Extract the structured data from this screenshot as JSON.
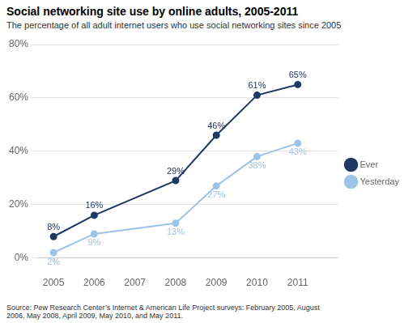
{
  "chart_data": {
    "type": "line",
    "title": "Social networking site use by online adults, 2005-2011",
    "subtitle": "The percentage of all adult internet users who use social networking sites since 2005",
    "source": "Source: Pew Research Center’s Internet & American Life Project surveys: February 2005, August\n2006, May 2008, April 2009, May 2010, and May 2011.",
    "x": [
      2005,
      2006,
      2008,
      2009,
      2010,
      2011
    ],
    "series": [
      {
        "name": "Ever",
        "color": "#1f3864",
        "values": [
          8,
          16,
          29,
          46,
          61,
          65
        ],
        "value_labels": [
          "8%",
          "16%",
          "29%",
          "46%",
          "61%",
          "65%"
        ]
      },
      {
        "name": "Yesterday",
        "color": "#9dc3e6",
        "values": [
          2,
          9,
          13,
          27,
          38,
          43
        ],
        "value_labels": [
          "2%",
          "9%",
          "13%",
          "27%",
          "38%",
          "43%"
        ]
      }
    ],
    "xlim": [
      2004.6,
      2012.0
    ],
    "xticks": [
      2005,
      2006,
      2007,
      2008,
      2009,
      2010,
      2011
    ],
    "ylim": [
      0,
      80
    ],
    "yticks": [
      {
        "value": 0,
        "label": "0%"
      },
      {
        "value": 20,
        "label": "20%"
      },
      {
        "value": 40,
        "label": "40%"
      },
      {
        "value": 60,
        "label": "60%"
      },
      {
        "value": 80,
        "label": "80%"
      }
    ],
    "grid": true,
    "legend": "right",
    "data_labels": true,
    "marker": "circle"
  }
}
